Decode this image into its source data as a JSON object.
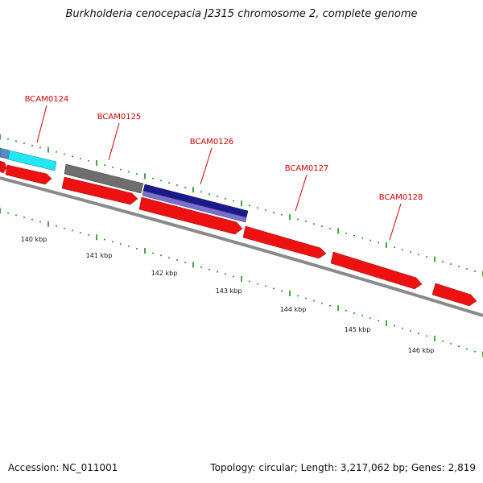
{
  "title": "Burkholderia cenocepacia J2315 chromosome 2, complete genome",
  "footer": {
    "accession": "Accession: NC_011001",
    "summary": "Topology: circular; Length: 3,217,062 bp; Genes: 2,819"
  },
  "colors": {
    "backbone": "#8a8a8a",
    "cds": "#ee1111",
    "tick": "#1f8a1f",
    "label": "#cc0000",
    "cyan_feature": "#22e6f2",
    "gray_feature": "#6e6e6e",
    "navy_feature": "#1a1a8c",
    "lavender_feature": "#7a70cc",
    "steel_feature": "#5a8ac0"
  },
  "scale_labels": [
    "140 kbp",
    "141 kbp",
    "142 kbp",
    "143 kbp",
    "144 kbp",
    "145 kbp",
    "146 kbp"
  ],
  "gene_labels": [
    "BCAM0124",
    "BCAM0125",
    "BCAM0126",
    "BCAM0127",
    "BCAM0128"
  ]
}
